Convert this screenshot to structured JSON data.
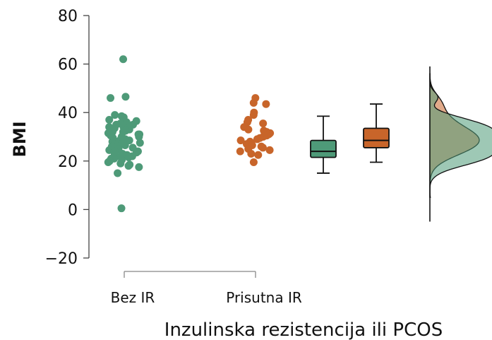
{
  "chart_data": {
    "type": "scatter",
    "subtype": "raincloud",
    "xlabel": "Inzulinska rezistencija ili PCOS",
    "ylabel": "BMI",
    "ylim": [
      -20,
      80
    ],
    "yticks": [
      -20,
      0,
      20,
      40,
      60,
      80
    ],
    "ytick_labels": [
      "−20",
      "0",
      "20",
      "40",
      "60",
      "80"
    ],
    "categories": [
      "Bez IR",
      "Prisutna IR"
    ],
    "grid": false,
    "legend": "none",
    "series": [
      {
        "category": "Bez IR",
        "color": "#4e9a78",
        "box": {
          "whisker_low": 15,
          "q1": 21.5,
          "median": 24,
          "q3": 28.5,
          "whisker_high": 38.5
        },
        "points": [
          62,
          46.5,
          46,
          39,
          38.5,
          38,
          37,
          36.5,
          36,
          35.5,
          35,
          35,
          34.5,
          34,
          34,
          33.5,
          33,
          33,
          32.5,
          32,
          32,
          31.5,
          31,
          31,
          30.5,
          30,
          30,
          29.5,
          29,
          29,
          28.5,
          28,
          28,
          27.5,
          27,
          27,
          26.5,
          26,
          26,
          25.5,
          25,
          25,
          24.5,
          24,
          24,
          23.5,
          23,
          23,
          22.5,
          22,
          22,
          21.5,
          21,
          21,
          20.5,
          20,
          19.5,
          19,
          18.5,
          18,
          17.5,
          15,
          0.5
        ]
      },
      {
        "category": "Prisutna IR",
        "color": "#c8652a",
        "box": {
          "whisker_low": 19.5,
          "q1": 25.5,
          "median": 28.5,
          "q3": 33.5,
          "whisker_high": 43.5
        },
        "points": [
          46,
          44,
          43.5,
          40,
          39,
          37,
          36,
          35.5,
          34,
          33,
          32.5,
          32,
          31.5,
          31,
          30.5,
          30,
          29.5,
          29,
          28.5,
          28,
          27.5,
          27,
          26.5,
          26,
          25.5,
          25,
          24.5,
          24,
          23,
          22.5,
          19.5
        ]
      }
    ]
  }
}
